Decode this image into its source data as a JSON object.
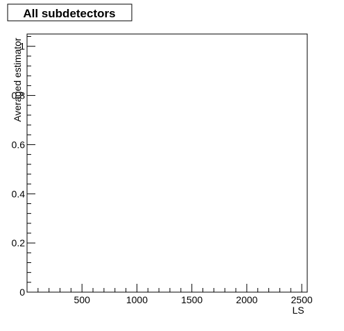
{
  "chart_data": {
    "type": "line",
    "title": "All subdetectors",
    "xlabel": "LS",
    "ylabel": "Averaged estimator",
    "xlim": [
      0,
      2550
    ],
    "ylim": [
      0,
      1.05
    ],
    "grid": false,
    "legend": "none",
    "x_ticks": [
      500,
      1000,
      1500,
      2000,
      2500
    ],
    "y_ticks": [
      0,
      0.2,
      0.4,
      0.6,
      0.8,
      1
    ],
    "x_tick_labels": [
      "500",
      "1000",
      "1500",
      "2000",
      "2500"
    ],
    "y_tick_labels": [
      "0",
      "0.2",
      "0.4",
      "0.6",
      "0.8",
      "1"
    ],
    "series": []
  },
  "colors": {
    "background": "#ffffff",
    "axis": "#000000",
    "text": "#000000"
  }
}
